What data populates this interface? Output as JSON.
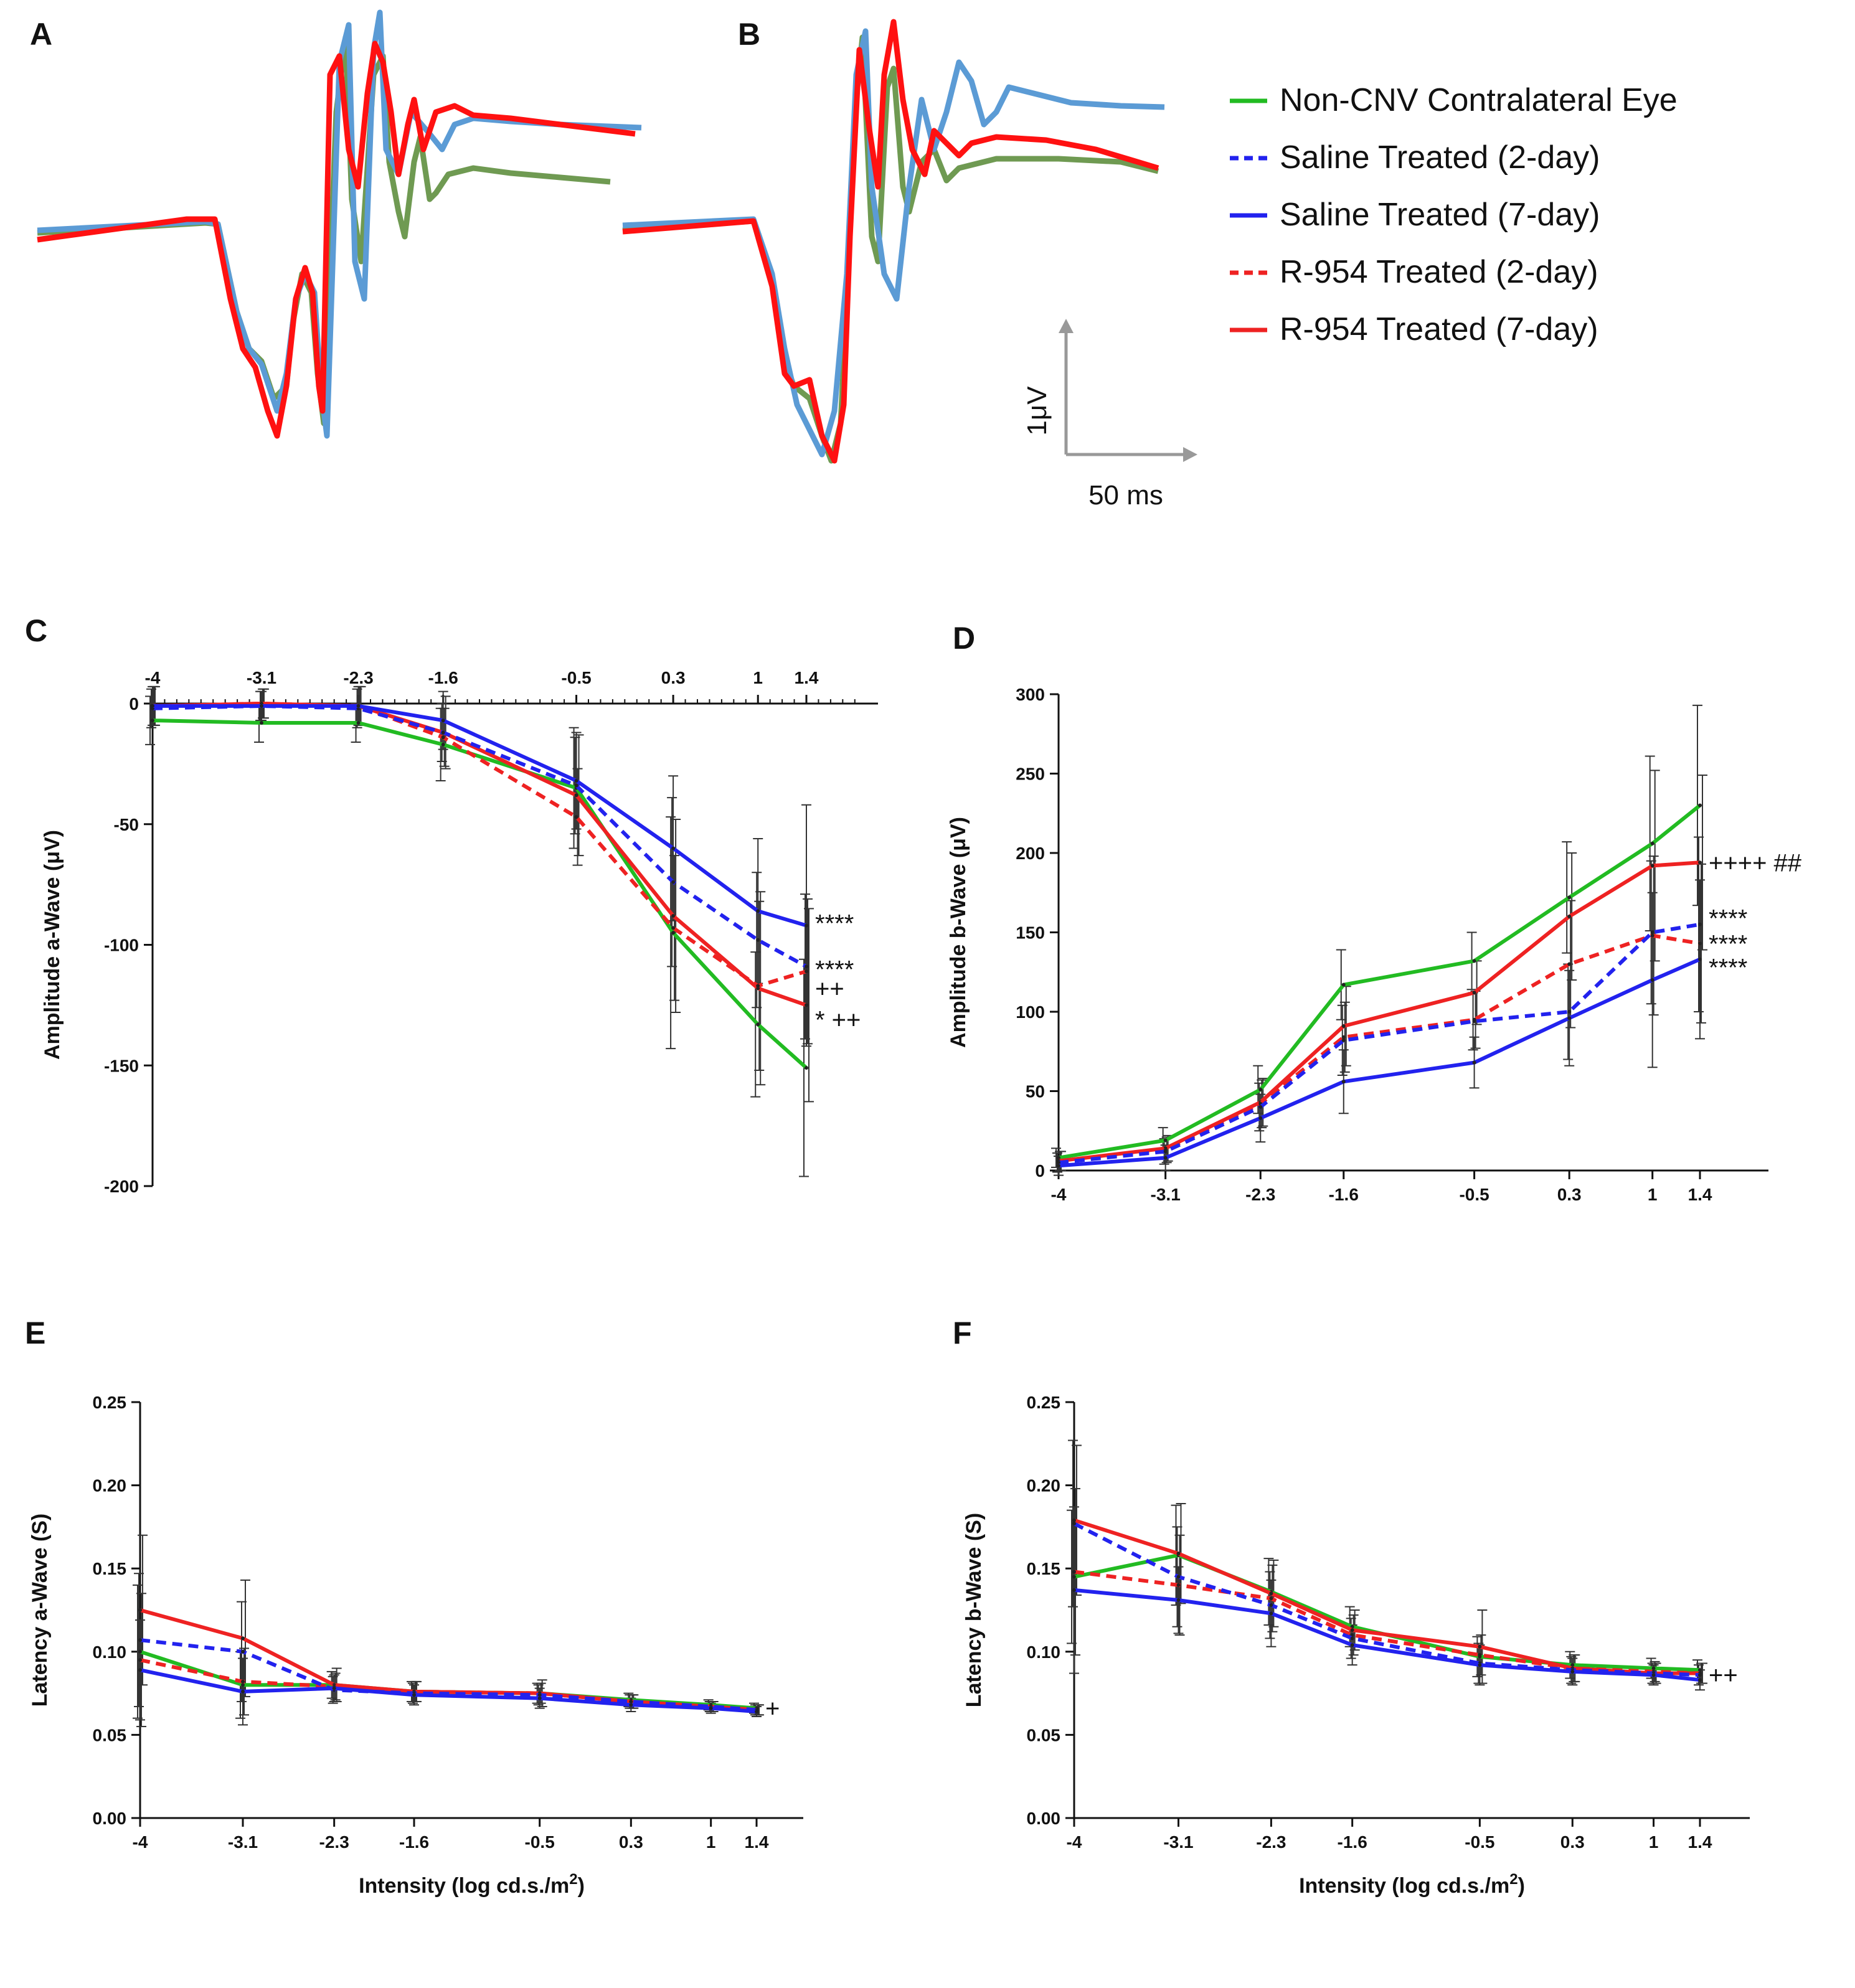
{
  "panel_labels": {
    "A": "A",
    "B": "B",
    "C": "C",
    "D": "D",
    "E": "E",
    "F": "F"
  },
  "legend": [
    {
      "label": "Non-CNV Contralateral Eye",
      "color": "#22bb22",
      "dash": false
    },
    {
      "label": "Saline Treated (2-day)",
      "color": "#2222ee",
      "dash": true
    },
    {
      "label": "Saline Treated (7-day)",
      "color": "#2222ee",
      "dash": false
    },
    {
      "label": "R-954 Treated (2-day)",
      "color": "#ee2222",
      "dash": true
    },
    {
      "label": "R-954 Treated (7-day)",
      "color": "#ee2222",
      "dash": false
    }
  ],
  "scale_bar": {
    "y_label": "1μV",
    "x_label": "50 ms"
  },
  "colors": {
    "green": "#22bb22",
    "blue": "#2222ee",
    "red": "#ee2222",
    "trace_green": "#6f9a52",
    "trace_blue": "#5b9bd5",
    "trace_red": "#ff1111"
  },
  "chart_data": [
    {
      "id": "C",
      "type": "line",
      "xlabel_top": true,
      "ylabel": "Amplitude a-Wave (μV)",
      "xlabel": "",
      "x": [
        -4,
        -3.1,
        -2.3,
        -1.6,
        -0.5,
        0.3,
        1,
        1.4
      ],
      "xtick_labels": [
        "-4",
        "-3.1",
        "-2.3",
        "-1.6",
        "-0.5",
        "0.3",
        "1",
        "1.4"
      ],
      "ylim": [
        -200,
        0
      ],
      "yticks": [
        0,
        -50,
        -100,
        -150,
        -200
      ],
      "ytick_labels": [
        "0",
        "-50",
        "-100",
        "-150",
        "-200"
      ],
      "series": [
        {
          "name": "Non-CNV Contralateral Eye",
          "color": "green",
          "dash": false,
          "values": [
            -7,
            -8,
            -8,
            -17,
            -35,
            -95,
            -133,
            -151
          ],
          "err": [
            10,
            8,
            8,
            15,
            25,
            48,
            30,
            45
          ]
        },
        {
          "name": "Saline Treated (2-day)",
          "color": "blue",
          "dash": true,
          "values": [
            -2,
            -1,
            -2,
            -12,
            -34,
            -74,
            -98,
            -109
          ],
          "err": [
            8,
            6,
            8,
            12,
            20,
            35,
            28,
            30
          ]
        },
        {
          "name": "Saline Treated (7-day)",
          "color": "blue",
          "dash": false,
          "values": [
            -1,
            -1,
            -1,
            -7,
            -32,
            -60,
            -86,
            -92
          ],
          "err": [
            8,
            6,
            8,
            12,
            20,
            30,
            30,
            50
          ]
        },
        {
          "name": "R-954 Treated (2-day)",
          "color": "red",
          "dash": true,
          "values": [
            -1,
            0,
            -1,
            -14,
            -47,
            -93,
            -117,
            -111
          ],
          "err": [
            8,
            6,
            8,
            12,
            20,
            30,
            35,
            30
          ]
        },
        {
          "name": "R-954 Treated (7-day)",
          "color": "red",
          "dash": false,
          "values": [
            -1,
            0,
            -1,
            -12,
            -38,
            -88,
            -118,
            -125
          ],
          "err": [
            8,
            6,
            8,
            15,
            25,
            40,
            40,
            40
          ]
        }
      ],
      "annotations": [
        {
          "text": "****",
          "x": 1.4,
          "y": -91
        },
        {
          "text": "****",
          "x": 1.4,
          "y": -110
        },
        {
          "text": "++",
          "x": 1.4,
          "y": -118
        },
        {
          "text": "*  ++",
          "x": 1.4,
          "y": -131
        }
      ]
    },
    {
      "id": "D",
      "type": "line",
      "ylabel": "Amplitude b-Wave (μV)",
      "xlabel": "",
      "x": [
        -4,
        -3.1,
        -2.3,
        -1.6,
        -0.5,
        0.3,
        1,
        1.4
      ],
      "xtick_labels": [
        "-4",
        "-3.1",
        "-2.3",
        "-1.6",
        "-0.5",
        "0.3",
        "1",
        "1.4"
      ],
      "ylim": [
        0,
        300
      ],
      "yticks": [
        0,
        50,
        100,
        150,
        200,
        250,
        300
      ],
      "ytick_labels": [
        "0",
        "50",
        "100",
        "150",
        "200",
        "250",
        "300"
      ],
      "series": [
        {
          "name": "Non-CNV Contralateral Eye",
          "color": "green",
          "dash": false,
          "values": [
            8,
            19,
            51,
            117,
            132,
            172,
            206,
            230
          ],
          "err": [
            6,
            8,
            15,
            22,
            18,
            35,
            55,
            63
          ]
        },
        {
          "name": "Saline Treated (2-day)",
          "color": "blue",
          "dash": true,
          "values": [
            5,
            12,
            40,
            82,
            94,
            100,
            150,
            155
          ],
          "err": [
            6,
            8,
            15,
            22,
            18,
            30,
            45,
            55
          ]
        },
        {
          "name": "Saline Treated (7-day)",
          "color": "blue",
          "dash": false,
          "values": [
            3,
            8,
            33,
            56,
            68,
            96,
            120,
            133
          ],
          "err": [
            6,
            8,
            15,
            20,
            16,
            30,
            55,
            50
          ]
        },
        {
          "name": "R-954 Treated (2-day)",
          "color": "red",
          "dash": true,
          "values": [
            6,
            13,
            42,
            84,
            95,
            130,
            148,
            143
          ],
          "err": [
            6,
            8,
            15,
            22,
            18,
            40,
            50,
            50
          ]
        },
        {
          "name": "R-954 Treated (7-day)",
          "color": "red",
          "dash": false,
          "values": [
            6,
            14,
            43,
            91,
            112,
            160,
            192,
            194
          ],
          "err": [
            6,
            8,
            15,
            25,
            20,
            40,
            60,
            55
          ]
        }
      ],
      "annotations": [
        {
          "text": "++++ ##",
          "x": 1.4,
          "y": 194
        },
        {
          "text": "****",
          "x": 1.4,
          "y": 159
        },
        {
          "text": "****",
          "x": 1.4,
          "y": 143
        },
        {
          "text": "****",
          "x": 1.4,
          "y": 128
        }
      ]
    },
    {
      "id": "E",
      "type": "line",
      "ylabel": "Latency a-Wave (S)",
      "xlabel": "Intensity (log cd.s./m",
      "xlabel_sup": "2",
      "xlabel_tail": ")",
      "x": [
        -4,
        -3.1,
        -2.3,
        -1.6,
        -0.5,
        0.3,
        1,
        1.4
      ],
      "xtick_labels": [
        "-4",
        "-3.1",
        "-2.3",
        "-1.6",
        "-0.5",
        "0.3",
        "1",
        "1.4"
      ],
      "ylim": [
        0,
        0.25
      ],
      "yticks": [
        0,
        0.05,
        0.1,
        0.15,
        0.2,
        0.25
      ],
      "ytick_labels": [
        "0.00",
        "0.05",
        "0.10",
        "0.15",
        "0.20",
        "0.25"
      ],
      "series": [
        {
          "name": "Non-CNV Contralateral Eye",
          "color": "green",
          "dash": false,
          "values": [
            0.1,
            0.08,
            0.08,
            0.076,
            0.075,
            0.071,
            0.068,
            0.066
          ],
          "err": [
            0.04,
            0.02,
            0.008,
            0.006,
            0.006,
            0.004,
            0.003,
            0.003
          ]
        },
        {
          "name": "Saline Treated (2-day)",
          "color": "blue",
          "dash": true,
          "values": [
            0.107,
            0.1,
            0.077,
            0.075,
            0.074,
            0.07,
            0.067,
            0.065
          ],
          "err": [
            0.04,
            0.03,
            0.008,
            0.006,
            0.006,
            0.004,
            0.003,
            0.003
          ]
        },
        {
          "name": "Saline Treated (7-day)",
          "color": "blue",
          "dash": false,
          "values": [
            0.089,
            0.076,
            0.078,
            0.074,
            0.072,
            0.068,
            0.066,
            0.064
          ],
          "err": [
            0.03,
            0.02,
            0.008,
            0.006,
            0.006,
            0.004,
            0.003,
            0.003
          ]
        },
        {
          "name": "R-954 Treated (2-day)",
          "color": "red",
          "dash": true,
          "values": [
            0.095,
            0.082,
            0.079,
            0.076,
            0.075,
            0.07,
            0.067,
            0.065
          ],
          "err": [
            0.04,
            0.02,
            0.008,
            0.006,
            0.006,
            0.004,
            0.003,
            0.003
          ]
        },
        {
          "name": "R-954 Treated (7-day)",
          "color": "red",
          "dash": false,
          "values": [
            0.125,
            0.108,
            0.08,
            0.076,
            0.075,
            0.07,
            0.067,
            0.065
          ],
          "err": [
            0.045,
            0.035,
            0.01,
            0.006,
            0.008,
            0.004,
            0.003,
            0.003
          ]
        }
      ],
      "annotations": [
        {
          "text": "+",
          "x": 1.4,
          "y": 0.066
        }
      ]
    },
    {
      "id": "F",
      "type": "line",
      "ylabel": "Latency b-Wave (S)",
      "xlabel": "Intensity (log cd.s./m",
      "xlabel_sup": "2",
      "xlabel_tail": ")",
      "x": [
        -4,
        -3.1,
        -2.3,
        -1.6,
        -0.5,
        0.3,
        1,
        1.4
      ],
      "xtick_labels": [
        "-4",
        "-3.1",
        "-2.3",
        "-1.6",
        "-0.5",
        "0.3",
        "1",
        "1.4"
      ],
      "ylim": [
        0,
        0.25
      ],
      "yticks": [
        0,
        0.05,
        0.1,
        0.15,
        0.2,
        0.25
      ],
      "ytick_labels": [
        "0.00",
        "0.05",
        "0.10",
        "0.15",
        "0.20",
        "0.25"
      ],
      "series": [
        {
          "name": "Non-CNV Contralateral Eye",
          "color": "green",
          "dash": false,
          "values": [
            0.145,
            0.158,
            0.136,
            0.115,
            0.097,
            0.092,
            0.09,
            0.089
          ],
          "err": [
            0.04,
            0.03,
            0.02,
            0.012,
            0.012,
            0.008,
            0.006,
            0.006
          ]
        },
        {
          "name": "Saline Treated (2-day)",
          "color": "blue",
          "dash": true,
          "values": [
            0.177,
            0.145,
            0.128,
            0.108,
            0.093,
            0.089,
            0.087,
            0.086
          ],
          "err": [
            0.05,
            0.03,
            0.02,
            0.012,
            0.012,
            0.008,
            0.006,
            0.006
          ]
        },
        {
          "name": "Saline Treated (7-day)",
          "color": "blue",
          "dash": false,
          "values": [
            0.137,
            0.131,
            0.123,
            0.104,
            0.092,
            0.088,
            0.086,
            0.083
          ],
          "err": [
            0.05,
            0.02,
            0.02,
            0.012,
            0.012,
            0.008,
            0.006,
            0.006
          ]
        },
        {
          "name": "R-954 Treated (2-day)",
          "color": "red",
          "dash": true,
          "values": [
            0.148,
            0.14,
            0.132,
            0.11,
            0.098,
            0.09,
            0.088,
            0.087
          ],
          "err": [
            0.05,
            0.03,
            0.02,
            0.012,
            0.012,
            0.008,
            0.006,
            0.006
          ]
        },
        {
          "name": "R-954 Treated (7-day)",
          "color": "red",
          "dash": false,
          "values": [
            0.179,
            0.159,
            0.135,
            0.113,
            0.103,
            0.09,
            0.087,
            0.087
          ],
          "err": [
            0.045,
            0.03,
            0.02,
            0.012,
            0.022,
            0.008,
            0.006,
            0.006
          ]
        }
      ],
      "annotations": [
        {
          "text": "++",
          "x": 1.4,
          "y": 0.086
        }
      ]
    }
  ]
}
